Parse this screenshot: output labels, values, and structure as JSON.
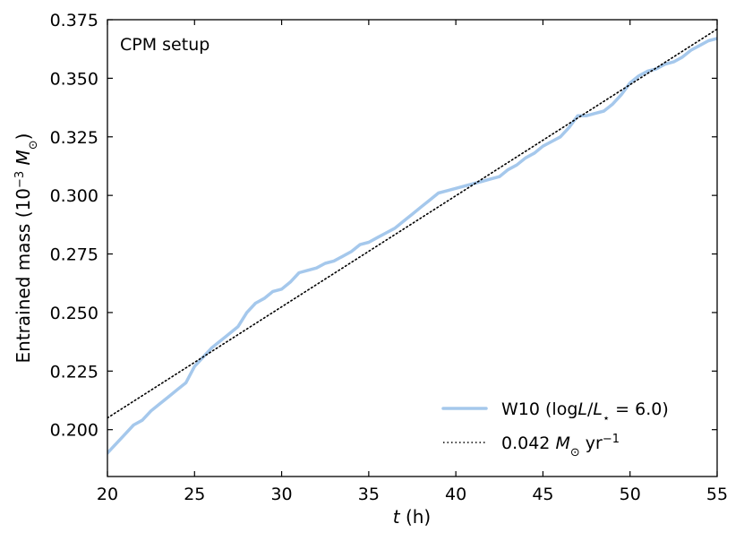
{
  "chart_data": {
    "type": "line",
    "annotation": "CPM setup",
    "xlabel_italic": "t",
    "xlabel_rest": " (h)",
    "ylabel_prefix": "Entrained mass (10",
    "ylabel_exp": "−3",
    "ylabel_mid": " M",
    "ylabel_sub": "⊙",
    "ylabel_suffix": ")",
    "xlim": [
      20,
      55
    ],
    "ylim": [
      0.18,
      0.375
    ],
    "xticks": [
      20,
      25,
      30,
      35,
      40,
      45,
      50,
      55
    ],
    "xtick_labels": [
      "20",
      "25",
      "30",
      "35",
      "40",
      "45",
      "50",
      "55"
    ],
    "yticks": [
      0.2,
      0.225,
      0.25,
      0.275,
      0.3,
      0.325,
      0.35,
      0.375
    ],
    "ytick_labels": [
      "0.200",
      "0.225",
      "0.250",
      "0.275",
      "0.300",
      "0.325",
      "0.350",
      "0.375"
    ],
    "grid": false,
    "legend_placement": "lower-right",
    "series": [
      {
        "name": "W10 (logL/L⋆ = 6.0)",
        "legend_parts": [
          "W10 (log",
          "L",
          "/",
          "L",
          "⋆",
          " = 6.0)"
        ],
        "style": "solid",
        "color": "#a5c8ec",
        "x": [
          20.0,
          20.5,
          21.0,
          21.5,
          22.0,
          22.5,
          23.0,
          23.5,
          24.0,
          24.5,
          25.0,
          25.5,
          26.0,
          26.5,
          27.0,
          27.5,
          28.0,
          28.5,
          29.0,
          29.5,
          30.0,
          30.5,
          31.0,
          31.5,
          32.0,
          32.5,
          33.0,
          33.5,
          34.0,
          34.5,
          35.0,
          35.5,
          36.0,
          36.5,
          37.0,
          37.5,
          38.0,
          38.5,
          39.0,
          39.5,
          40.0,
          40.5,
          41.0,
          41.5,
          42.0,
          42.5,
          43.0,
          43.5,
          44.0,
          44.5,
          45.0,
          45.5,
          46.0,
          46.5,
          47.0,
          47.5,
          48.0,
          48.5,
          49.0,
          49.5,
          50.0,
          50.5,
          51.0,
          51.5,
          52.0,
          52.5,
          53.0,
          53.5,
          54.0,
          54.5,
          55.0
        ],
        "y": [
          0.19,
          0.194,
          0.198,
          0.202,
          0.204,
          0.208,
          0.211,
          0.214,
          0.217,
          0.22,
          0.227,
          0.231,
          0.235,
          0.238,
          0.241,
          0.244,
          0.25,
          0.254,
          0.256,
          0.259,
          0.26,
          0.263,
          0.267,
          0.268,
          0.269,
          0.271,
          0.272,
          0.274,
          0.276,
          0.279,
          0.28,
          0.282,
          0.284,
          0.286,
          0.289,
          0.292,
          0.295,
          0.298,
          0.301,
          0.302,
          0.303,
          0.304,
          0.305,
          0.306,
          0.307,
          0.308,
          0.311,
          0.313,
          0.316,
          0.318,
          0.321,
          0.323,
          0.325,
          0.329,
          0.334,
          0.334,
          0.335,
          0.336,
          0.339,
          0.343,
          0.348,
          0.351,
          0.353,
          0.354,
          0.356,
          0.357,
          0.359,
          0.362,
          0.364,
          0.366,
          0.367
        ]
      },
      {
        "name": "0.042 M⊙ yr⁻¹",
        "legend_parts": [
          "0.042 ",
          "M",
          "⊙",
          " yr",
          "−1"
        ],
        "style": "dotted",
        "color": "#000000",
        "x": [
          20,
          55
        ],
        "y": [
          0.205,
          0.371
        ]
      }
    ]
  }
}
